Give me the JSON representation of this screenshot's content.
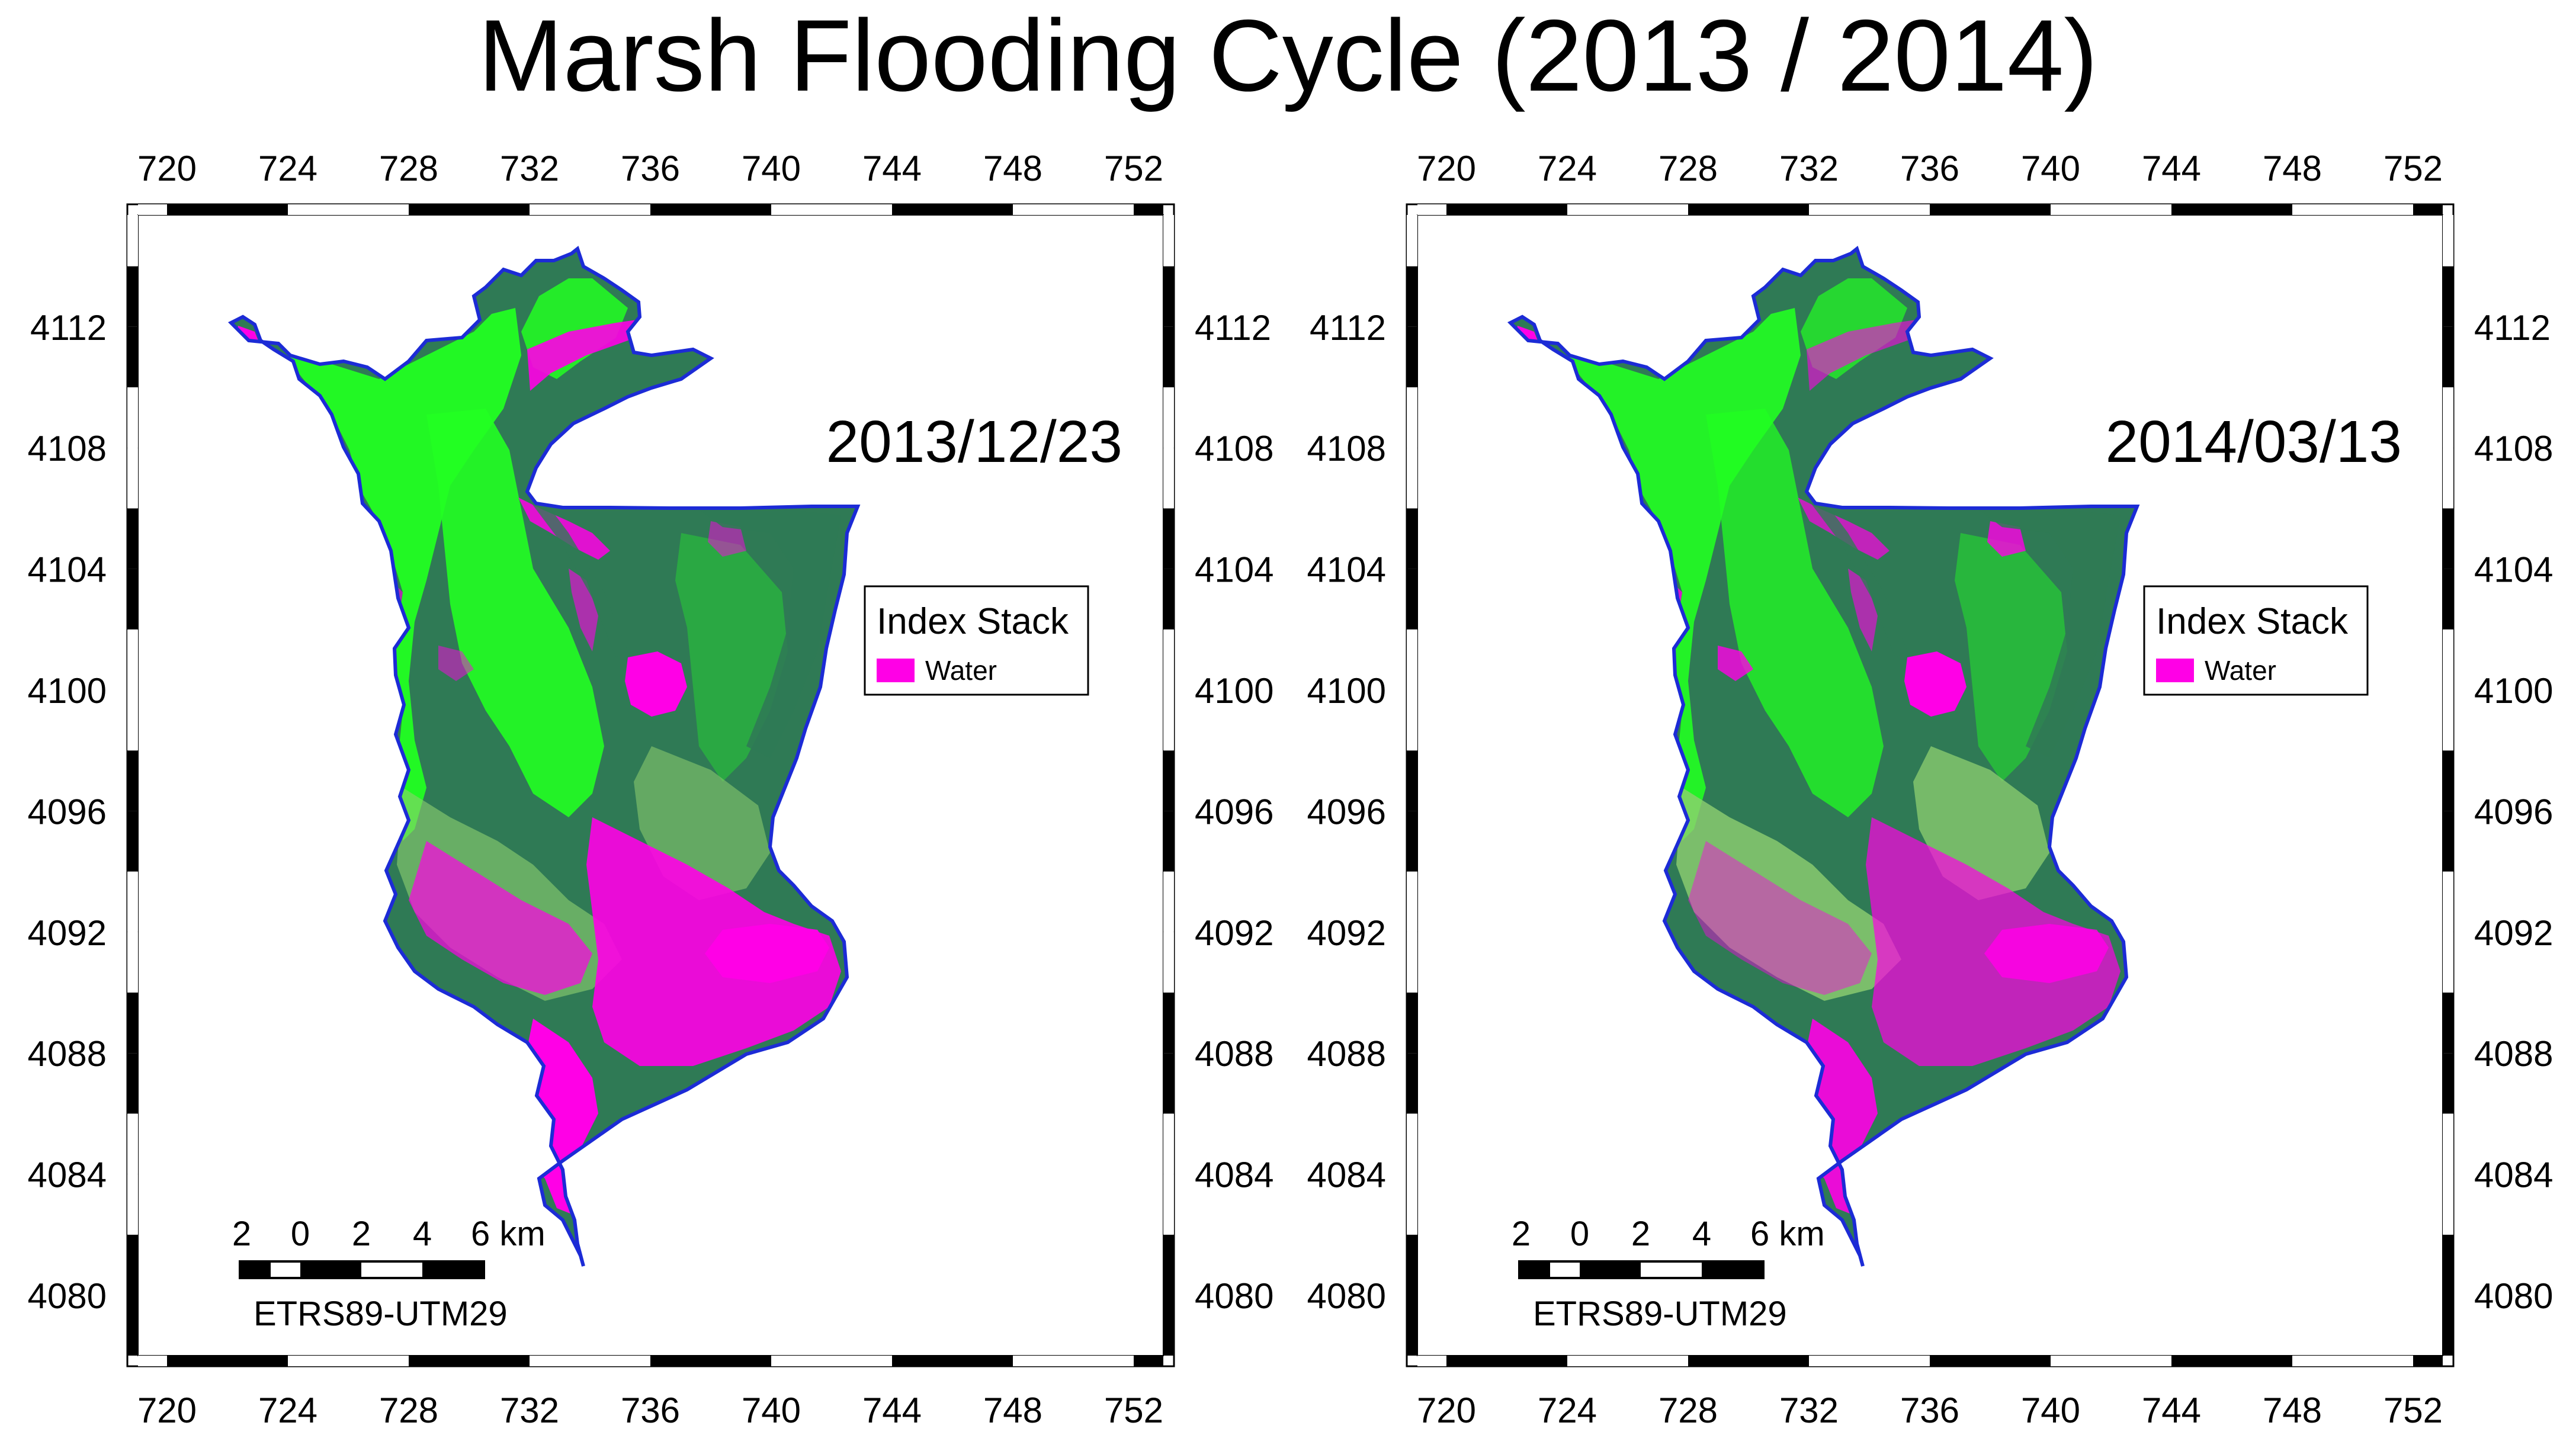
{
  "title": "Marsh Flooding Cycle (2013 / 2014)",
  "x_ticks": [
    "720",
    "724",
    "728",
    "732",
    "736",
    "740",
    "744",
    "748",
    "752"
  ],
  "y_ticks": [
    "4112",
    "4108",
    "4104",
    "4100",
    "4096",
    "4092",
    "4088",
    "4084",
    "4080"
  ],
  "panels": [
    {
      "date": "2013/12/23",
      "legend": {
        "title": "Index Stack",
        "items": [
          {
            "label": "Water",
            "color": "#ff00e6"
          }
        ]
      },
      "scale_bar": {
        "labels": [
          "2",
          "0",
          "2",
          "4",
          "6 km"
        ]
      },
      "crs": "ETRS89-UTM29"
    },
    {
      "date": "2014/03/13",
      "legend": {
        "title": "Index Stack",
        "items": [
          {
            "label": "Water",
            "color": "#ff00e6"
          }
        ]
      },
      "scale_bar": {
        "labels": [
          "2",
          "0",
          "2",
          "4",
          "6 km"
        ]
      },
      "crs": "ETRS89-UTM29"
    }
  ],
  "colors": {
    "water": "#ff00e6",
    "vegetation_bright": "#22ff22",
    "vegetation_dark": "#2f7a55",
    "mixed": "#8fd070",
    "outline": "#1c2bd6"
  }
}
